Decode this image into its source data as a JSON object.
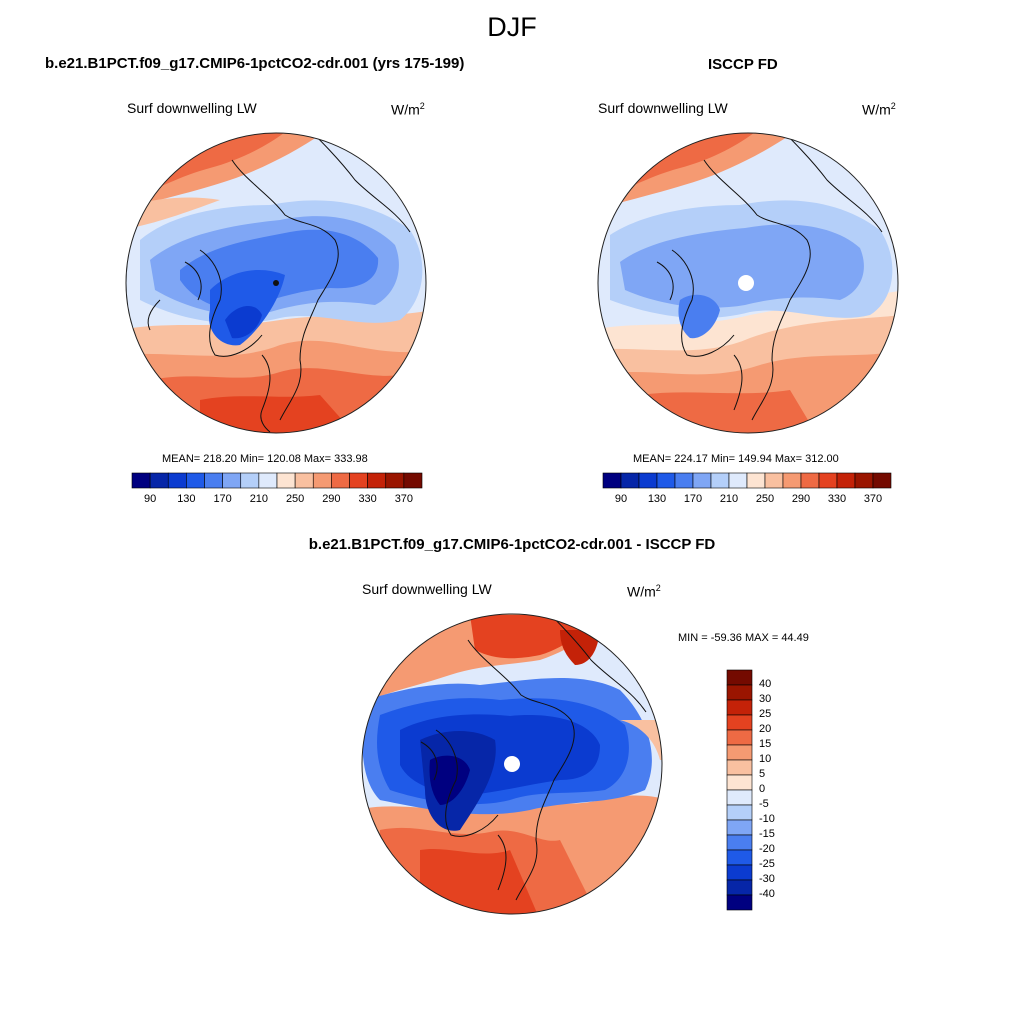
{
  "title": "DJF",
  "unit_base": "W/m",
  "unit_exp": "2",
  "palette_abs": [
    "#000080",
    "#0626a8",
    "#0b3bd0",
    "#1f5ae8",
    "#4a7ef0",
    "#7fa6f5",
    "#b4cff9",
    "#dfeafc",
    "#fde4d2",
    "#f9c0a0",
    "#f59a72",
    "#ee6a44",
    "#e44220",
    "#c42208",
    "#9a1500",
    "#740a00"
  ],
  "palette_diff": [
    "#000080",
    "#0626a8",
    "#0b3bd0",
    "#1f5ae8",
    "#4a7ef0",
    "#7fa6f5",
    "#b4cff9",
    "#dfeafc",
    "#fde4d2",
    "#f9c0a0",
    "#f59a72",
    "#ee6a44",
    "#e44220",
    "#c42208",
    "#9a1500",
    "#740a00"
  ],
  "panels": {
    "model": {
      "title": "b.e21.B1PCT.f09_g17.CMIP6-1pctCO2-cdr.001 (yrs 175-199)",
      "variable": "Surf downwelling LW",
      "stats": "MEAN= 218.20  Min= 120.08  Max= 333.98",
      "colorbar_ticks": [
        "90",
        "130",
        "170",
        "210",
        "250",
        "290",
        "330",
        "370"
      ]
    },
    "obs": {
      "title": "ISCCP FD",
      "variable": "Surf downwelling LW",
      "stats": "MEAN= 224.17  Min= 149.94  Max= 312.00",
      "colorbar_ticks": [
        "90",
        "130",
        "170",
        "210",
        "250",
        "290",
        "330",
        "370"
      ]
    },
    "diff": {
      "title": "b.e21.B1PCT.f09_g17.CMIP6-1pctCO2-cdr.001 - ISCCP FD",
      "variable": "Surf downwelling LW",
      "stats": "MIN = -59.36 MAX =  44.49",
      "colorbar_ticks": [
        "40",
        "30",
        "25",
        "20",
        "15",
        "10",
        "5",
        "0",
        "-5",
        "-10",
        "-15",
        "-20",
        "-25",
        "-30",
        "-40"
      ]
    }
  },
  "chart_data": [
    {
      "type": "heatmap",
      "title": "b.e21.B1PCT.f09_g17.CMIP6-1pctCO2-cdr.001 (yrs 175-199)",
      "subtitle": "Surf downwelling LW",
      "units": "W/m2",
      "projection": "north polar stereographic",
      "statistics": {
        "mean": 218.2,
        "min": 120.08,
        "max": 333.98
      },
      "contour_levels": [
        90,
        110,
        130,
        150,
        170,
        190,
        210,
        230,
        250,
        270,
        290,
        310,
        330,
        350,
        370
      ],
      "colorbar_ticks": [
        90,
        130,
        170,
        210,
        250,
        290,
        330,
        370
      ]
    },
    {
      "type": "heatmap",
      "title": "ISCCP FD",
      "subtitle": "Surf downwelling LW",
      "units": "W/m2",
      "projection": "north polar stereographic",
      "statistics": {
        "mean": 224.17,
        "min": 149.94,
        "max": 312.0
      },
      "contour_levels": [
        90,
        110,
        130,
        150,
        170,
        190,
        210,
        230,
        250,
        270,
        290,
        310,
        330,
        350,
        370
      ],
      "colorbar_ticks": [
        90,
        130,
        170,
        210,
        250,
        290,
        330,
        370
      ]
    },
    {
      "type": "heatmap",
      "title": "b.e21.B1PCT.f09_g17.CMIP6-1pctCO2-cdr.001 - ISCCP FD",
      "subtitle": "Surf downwelling LW",
      "units": "W/m2",
      "projection": "north polar stereographic",
      "statistics": {
        "min": -59.36,
        "max": 44.49
      },
      "contour_levels": [
        -40,
        -30,
        -25,
        -20,
        -15,
        -10,
        -5,
        0,
        5,
        10,
        15,
        20,
        25,
        30,
        40
      ],
      "colorbar_ticks": [
        40,
        30,
        25,
        20,
        15,
        10,
        5,
        0,
        -5,
        -10,
        -15,
        -20,
        -25,
        -30,
        -40
      ]
    }
  ]
}
